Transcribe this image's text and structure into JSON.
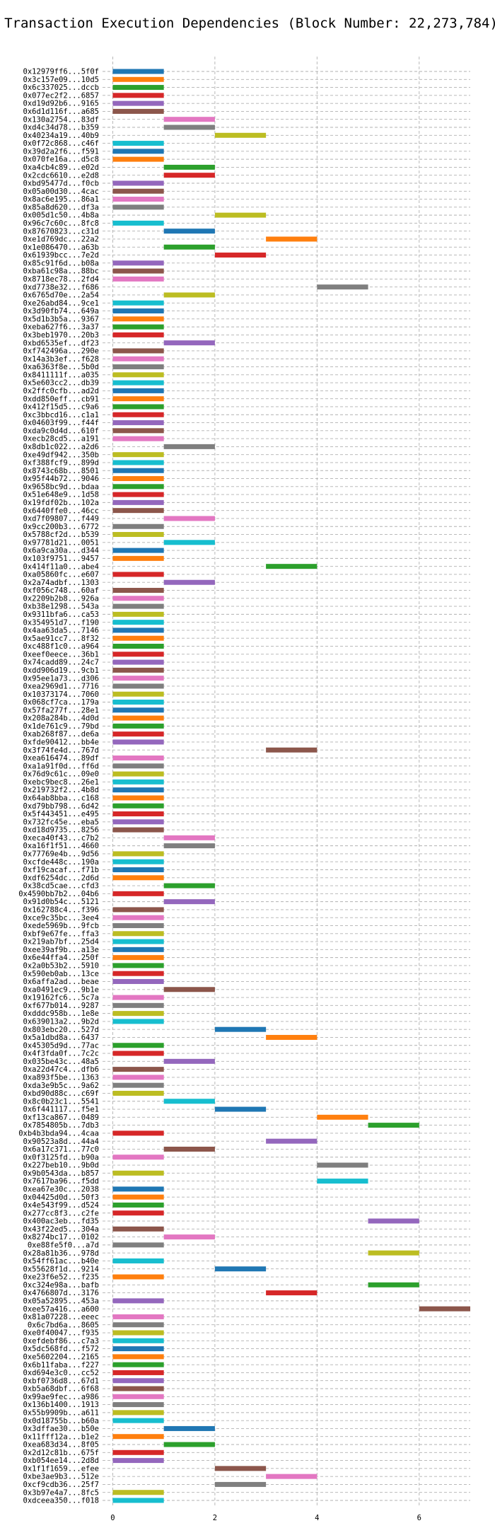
{
  "chart_data": {
    "type": "bar",
    "orientation": "horizontal",
    "title": "Transaction Execution Dependencies (Block Number: 22,273,784)",
    "xlabel": "",
    "ylabel": "",
    "xlim": [
      -0.2,
      7.0
    ],
    "xticks": [
      0,
      2,
      4,
      6
    ],
    "grid": "both",
    "palette": [
      "#1f77b4",
      "#ff7f0e",
      "#2ca02c",
      "#d62728",
      "#9467bd",
      "#8c564b",
      "#e377c2",
      "#7f7f7f",
      "#bcbd22",
      "#17becf"
    ],
    "bars": [
      {
        "tx": "0x12979ff6...5f0f",
        "start": 0,
        "end": 1
      },
      {
        "tx": "0x3c157e09...10d5",
        "start": 0,
        "end": 1
      },
      {
        "tx": "0x6c337025...dccb",
        "start": 0,
        "end": 1
      },
      {
        "tx": "0x077ec2f2...6857",
        "start": 0,
        "end": 1
      },
      {
        "tx": "0xd19d92b6...9165",
        "start": 0,
        "end": 1
      },
      {
        "tx": "0x6d1d116f...a685",
        "start": 0,
        "end": 1
      },
      {
        "tx": "0x130a2754...83df",
        "start": 1,
        "end": 2
      },
      {
        "tx": "0xd4c34d78...b359",
        "start": 1,
        "end": 2
      },
      {
        "tx": "0x40234a19...40b9",
        "start": 2,
        "end": 3
      },
      {
        "tx": "0x0f72c868...c46f",
        "start": 0,
        "end": 1
      },
      {
        "tx": "0x39d2a2f6...f591",
        "start": 0,
        "end": 1
      },
      {
        "tx": "0x070fe16a...d5c8",
        "start": 0,
        "end": 1
      },
      {
        "tx": "0xa4cb4c89...e02d",
        "start": 1,
        "end": 2
      },
      {
        "tx": "0x2cdc6610...e2d8",
        "start": 1,
        "end": 2
      },
      {
        "tx": "0xbd95477d...f0cb",
        "start": 0,
        "end": 1
      },
      {
        "tx": "0x05a00d30...4cac",
        "start": 0,
        "end": 1
      },
      {
        "tx": "0x8ac6e195...86a1",
        "start": 0,
        "end": 1
      },
      {
        "tx": "0x85a8d620...df3a",
        "start": 0,
        "end": 1
      },
      {
        "tx": "0x005d1c50...4b8a",
        "start": 2,
        "end": 3
      },
      {
        "tx": "0x96c7c60c...8fc8",
        "start": 0,
        "end": 1
      },
      {
        "tx": "0x87670823...c31d",
        "start": 1,
        "end": 2
      },
      {
        "tx": "0xe1d769dc...22a2",
        "start": 3,
        "end": 4
      },
      {
        "tx": "0x1e086470...a63b",
        "start": 1,
        "end": 2
      },
      {
        "tx": "0x61939bcc...7e2d",
        "start": 2,
        "end": 3
      },
      {
        "tx": "0x85c91f6d...b08a",
        "start": 0,
        "end": 1
      },
      {
        "tx": "0xba61c98a...88bc",
        "start": 0,
        "end": 1
      },
      {
        "tx": "0x8718ec78...2fd4",
        "start": 0,
        "end": 1
      },
      {
        "tx": "0xd7738e32...f686",
        "start": 4,
        "end": 5
      },
      {
        "tx": "0x6765d70e...2a54",
        "start": 1,
        "end": 2
      },
      {
        "tx": "0xe26abd84...9ce1",
        "start": 0,
        "end": 1
      },
      {
        "tx": "0x3d90fb74...649a",
        "start": 0,
        "end": 1
      },
      {
        "tx": "0x5d1b3b5a...9367",
        "start": 0,
        "end": 1
      },
      {
        "tx": "0xeba627f6...3a37",
        "start": 0,
        "end": 1
      },
      {
        "tx": "0x3beb1970...20b3",
        "start": 0,
        "end": 1
      },
      {
        "tx": "0xbd6535ef...df23",
        "start": 1,
        "end": 2
      },
      {
        "tx": "0xf742496a...290e",
        "start": 0,
        "end": 1
      },
      {
        "tx": "0x14a3b3ef...f628",
        "start": 0,
        "end": 1
      },
      {
        "tx": "0xa6363f8e...5b0d",
        "start": 0,
        "end": 1
      },
      {
        "tx": "0x8411111f...a035",
        "start": 0,
        "end": 1
      },
      {
        "tx": "0x5e603cc2...db39",
        "start": 0,
        "end": 1
      },
      {
        "tx": "0x2ffc0cfb...ad2d",
        "start": 0,
        "end": 1
      },
      {
        "tx": "0xdd850eff...cb91",
        "start": 0,
        "end": 1
      },
      {
        "tx": "0x412f15d5...c9a6",
        "start": 0,
        "end": 1
      },
      {
        "tx": "0xc3bbcd16...c1a1",
        "start": 0,
        "end": 1
      },
      {
        "tx": "0x04603f99...f44f",
        "start": 0,
        "end": 1
      },
      {
        "tx": "0xda9c0d4d...610f",
        "start": 0,
        "end": 1
      },
      {
        "tx": "0xecb28cd5...a191",
        "start": 0,
        "end": 1
      },
      {
        "tx": "0x8db1c022...a2d6",
        "start": 1,
        "end": 2
      },
      {
        "tx": "0xe49df942...350b",
        "start": 0,
        "end": 1
      },
      {
        "tx": "0xf388fcf9...899d",
        "start": 0,
        "end": 1
      },
      {
        "tx": "0x8743c68b...8501",
        "start": 0,
        "end": 1
      },
      {
        "tx": "0x95f44b72...9046",
        "start": 0,
        "end": 1
      },
      {
        "tx": "0x9658bc9d...bdaa",
        "start": 0,
        "end": 1
      },
      {
        "tx": "0x51e648e9...1d58",
        "start": 0,
        "end": 1
      },
      {
        "tx": "0x19fdf02b...102a",
        "start": 0,
        "end": 1
      },
      {
        "tx": "0x6440ffe0...46cc",
        "start": 0,
        "end": 1
      },
      {
        "tx": "0xd7f09807...f449",
        "start": 1,
        "end": 2
      },
      {
        "tx": "0x9cc200b3...6772",
        "start": 0,
        "end": 1
      },
      {
        "tx": "0x5788cf2d...b539",
        "start": 0,
        "end": 1
      },
      {
        "tx": "0x97781d21...0051",
        "start": 1,
        "end": 2
      },
      {
        "tx": "0x6a9ca30a...d344",
        "start": 0,
        "end": 1
      },
      {
        "tx": "0x103f9751...9457",
        "start": 0,
        "end": 1
      },
      {
        "tx": "0x414f11a0...abe4",
        "start": 3,
        "end": 4
      },
      {
        "tx": "0xa05860fc...e607",
        "start": 0,
        "end": 1
      },
      {
        "tx": "0x2a74adbf...1303",
        "start": 1,
        "end": 2
      },
      {
        "tx": "0xf056c748...60af",
        "start": 0,
        "end": 1
      },
      {
        "tx": "0x2209b2b8...926a",
        "start": 0,
        "end": 1
      },
      {
        "tx": "0xb38e1298...543a",
        "start": 0,
        "end": 1
      },
      {
        "tx": "0x9311bfa6...ca53",
        "start": 0,
        "end": 1
      },
      {
        "tx": "0x354951d7...f190",
        "start": 0,
        "end": 1
      },
      {
        "tx": "0x4aa63da5...7146",
        "start": 0,
        "end": 1
      },
      {
        "tx": "0x5ae91cc7...8f32",
        "start": 0,
        "end": 1
      },
      {
        "tx": "0xc488f1c0...a964",
        "start": 0,
        "end": 1
      },
      {
        "tx": "0xeef0eece...36b1",
        "start": 0,
        "end": 1
      },
      {
        "tx": "0x74cadd89...24c7",
        "start": 0,
        "end": 1
      },
      {
        "tx": "0xdd906d19...9cb1",
        "start": 0,
        "end": 1
      },
      {
        "tx": "0x95ee1a73...d306",
        "start": 0,
        "end": 1
      },
      {
        "tx": "0xea2969d1...7716",
        "start": 0,
        "end": 1
      },
      {
        "tx": "0x10373174...7060",
        "start": 0,
        "end": 1
      },
      {
        "tx": "0x068cf7ca...179a",
        "start": 0,
        "end": 1
      },
      {
        "tx": "0x57fa277f...28e1",
        "start": 0,
        "end": 1
      },
      {
        "tx": "0x208a284b...4d0d",
        "start": 0,
        "end": 1
      },
      {
        "tx": "0x1de761c9...79bd",
        "start": 0,
        "end": 1
      },
      {
        "tx": "0xab268f87...de6a",
        "start": 0,
        "end": 1
      },
      {
        "tx": "0xfde90412...bb4e",
        "start": 0,
        "end": 1
      },
      {
        "tx": "0x3f74fe4d...767d",
        "start": 3,
        "end": 4
      },
      {
        "tx": "0xea616474...89df",
        "start": 0,
        "end": 1
      },
      {
        "tx": "0xa1a91f0d...ff6d",
        "start": 0,
        "end": 1
      },
      {
        "tx": "0x76d9c61c...09e0",
        "start": 0,
        "end": 1
      },
      {
        "tx": "0xebc9bec8...26e1",
        "start": 0,
        "end": 1
      },
      {
        "tx": "0x219732f2...4b8d",
        "start": 0,
        "end": 1
      },
      {
        "tx": "0x64ab8bba...c168",
        "start": 0,
        "end": 1
      },
      {
        "tx": "0xd79bb798...6d42",
        "start": 0,
        "end": 1
      },
      {
        "tx": "0x5f443451...e495",
        "start": 0,
        "end": 1
      },
      {
        "tx": "0x732fc45e...eba5",
        "start": 0,
        "end": 1
      },
      {
        "tx": "0xd18d9735...8256",
        "start": 0,
        "end": 1
      },
      {
        "tx": "0xeca40f43...c7b2",
        "start": 1,
        "end": 2
      },
      {
        "tx": "0xa16f1f51...4660",
        "start": 1,
        "end": 2
      },
      {
        "tx": "0x77769e4b...9d56",
        "start": 0,
        "end": 1
      },
      {
        "tx": "0xcfde448c...190a",
        "start": 0,
        "end": 1
      },
      {
        "tx": "0xf19cacaf...f71b",
        "start": 0,
        "end": 1
      },
      {
        "tx": "0xdf6254dc...2d6d",
        "start": 0,
        "end": 1
      },
      {
        "tx": "0x38cd5cae...cfd3",
        "start": 1,
        "end": 2
      },
      {
        "tx": "0x4590bb7b2...04b6",
        "start": 0,
        "end": 1
      },
      {
        "tx": "0x91d0b54c...5121",
        "start": 1,
        "end": 2
      },
      {
        "tx": "0x162788c4...f396",
        "start": 0,
        "end": 1
      },
      {
        "tx": "0xce9c35bc...3ee4",
        "start": 0,
        "end": 1
      },
      {
        "tx": "0xede5969b...9fcb",
        "start": 0,
        "end": 1
      },
      {
        "tx": "0xbf9e67fe...ffa3",
        "start": 0,
        "end": 1
      },
      {
        "tx": "0x219ab7bf...25d4",
        "start": 0,
        "end": 1
      },
      {
        "tx": "0xee39af9b...a13e",
        "start": 0,
        "end": 1
      },
      {
        "tx": "0x6e44ffa4...250f",
        "start": 0,
        "end": 1
      },
      {
        "tx": "0x2a0b53b2...5910",
        "start": 0,
        "end": 1
      },
      {
        "tx": "0x590eb0ab...13ce",
        "start": 0,
        "end": 1
      },
      {
        "tx": "0x6affa2ad...beae",
        "start": 0,
        "end": 1
      },
      {
        "tx": "0xa0491ec9...9b1e",
        "start": 1,
        "end": 2
      },
      {
        "tx": "0x19162fc6...5c7a",
        "start": 0,
        "end": 1
      },
      {
        "tx": "0xf677b014...9287",
        "start": 0,
        "end": 1
      },
      {
        "tx": "0xdddc958b...1e8e",
        "start": 0,
        "end": 1
      },
      {
        "tx": "0x639013a2...9b2d",
        "start": 0,
        "end": 1
      },
      {
        "tx": "0x803ebc20...527d",
        "start": 2,
        "end": 3
      },
      {
        "tx": "0x5a1dbd8a...6437",
        "start": 3,
        "end": 4
      },
      {
        "tx": "0x45305d9d...77ac",
        "start": 0,
        "end": 1
      },
      {
        "tx": "0x4f3fda0f...7c2c",
        "start": 0,
        "end": 1
      },
      {
        "tx": "0x035be43c...48a5",
        "start": 1,
        "end": 2
      },
      {
        "tx": "0xa22d47c4...dfb6",
        "start": 0,
        "end": 1
      },
      {
        "tx": "0xa893f5be...1363",
        "start": 0,
        "end": 1
      },
      {
        "tx": "0xda3e9b5c...9a62",
        "start": 0,
        "end": 1
      },
      {
        "tx": "0xbd90d88c...c69f",
        "start": 0,
        "end": 1
      },
      {
        "tx": "0x8c0b23c1...5541",
        "start": 1,
        "end": 2
      },
      {
        "tx": "0x6f441117...f5e1",
        "start": 2,
        "end": 3
      },
      {
        "tx": "0xf13ca867...0489",
        "start": 4,
        "end": 5
      },
      {
        "tx": "0x7854805b...7db3",
        "start": 5,
        "end": 6
      },
      {
        "tx": "0xb4b3bda94...4caa",
        "start": 0,
        "end": 1
      },
      {
        "tx": "0x90523a8d...44a4",
        "start": 3,
        "end": 4
      },
      {
        "tx": "0x6a17c371...77c0",
        "start": 1,
        "end": 2
      },
      {
        "tx": "0x0f3125fd...b90a",
        "start": 0,
        "end": 1
      },
      {
        "tx": "0x227beb10...9b0d",
        "start": 4,
        "end": 5
      },
      {
        "tx": "0x9b0543da...b857",
        "start": 0,
        "end": 1
      },
      {
        "tx": "0x7617ba96...f5dd",
        "start": 4,
        "end": 5
      },
      {
        "tx": "0xea67e30c...2038",
        "start": 0,
        "end": 1
      },
      {
        "tx": "0x04425d0d...50f3",
        "start": 0,
        "end": 1
      },
      {
        "tx": "0x4e543f99...d524",
        "start": 0,
        "end": 1
      },
      {
        "tx": "0x277cc8f3...c2fe",
        "start": 0,
        "end": 1
      },
      {
        "tx": "0x400ac3eb...fd35",
        "start": 5,
        "end": 6
      },
      {
        "tx": "0x43f22ed5...304a",
        "start": 0,
        "end": 1
      },
      {
        "tx": "0x8274bc17...0102",
        "start": 1,
        "end": 2
      },
      {
        "tx": "0xe88fe5f0...a7d",
        "start": 0,
        "end": 1
      },
      {
        "tx": "0x28a81b36...978d",
        "start": 5,
        "end": 6
      },
      {
        "tx": "0x54ff61ac...b40e",
        "start": 0,
        "end": 1
      },
      {
        "tx": "0x55628f1d...9214",
        "start": 2,
        "end": 3
      },
      {
        "tx": "0xe23f6e52...f235",
        "start": 0,
        "end": 1
      },
      {
        "tx": "0xc324e98a...bafb",
        "start": 5,
        "end": 6
      },
      {
        "tx": "0x4766807d...3176",
        "start": 3,
        "end": 4
      },
      {
        "tx": "0x05a52895...453a",
        "start": 0,
        "end": 1
      },
      {
        "tx": "0xee57a416...a600",
        "start": 6,
        "end": 7
      },
      {
        "tx": "0x81a07228...eeec",
        "start": 0,
        "end": 1
      },
      {
        "tx": "0x6c7bd6a...8605",
        "start": 0,
        "end": 1
      },
      {
        "tx": "0xe0f40047...f935",
        "start": 0,
        "end": 1
      },
      {
        "tx": "0xefdebf86...c7a3",
        "start": 0,
        "end": 1
      },
      {
        "tx": "0x5dc568fd...f572",
        "start": 0,
        "end": 1
      },
      {
        "tx": "0xe5602204...2165",
        "start": 0,
        "end": 1
      },
      {
        "tx": "0x6b11faba...f227",
        "start": 0,
        "end": 1
      },
      {
        "tx": "0xd694e3c0...cc52",
        "start": 0,
        "end": 1
      },
      {
        "tx": "0xbf0736d8...67d1",
        "start": 0,
        "end": 1
      },
      {
        "tx": "0xb5a68dbf...6f68",
        "start": 0,
        "end": 1
      },
      {
        "tx": "0x99ae9fec...a986",
        "start": 0,
        "end": 1
      },
      {
        "tx": "0x136b1400...1913",
        "start": 0,
        "end": 1
      },
      {
        "tx": "0x55b9909b...a611",
        "start": 0,
        "end": 1
      },
      {
        "tx": "0x0d18755b...b60a",
        "start": 0,
        "end": 1
      },
      {
        "tx": "0x3dffae30...b50e",
        "start": 1,
        "end": 2
      },
      {
        "tx": "0x11fff12a...b1e2",
        "start": 0,
        "end": 1
      },
      {
        "tx": "0xea683d34...8f05",
        "start": 1,
        "end": 2
      },
      {
        "tx": "0x2d12c81b...675f",
        "start": 0,
        "end": 1
      },
      {
        "tx": "0xb054ee14...2d8d",
        "start": 0,
        "end": 1
      },
      {
        "tx": "0x1f1f1659...efee",
        "start": 2,
        "end": 3
      },
      {
        "tx": "0xbe3ae9b3...512e",
        "start": 3,
        "end": 4
      },
      {
        "tx": "0xcf9cdb36...25f7",
        "start": 2,
        "end": 3
      },
      {
        "tx": "0x3b97e4a7...8fc5",
        "start": 0,
        "end": 1
      },
      {
        "tx": "0xdceea350...f018",
        "start": 0,
        "end": 1
      }
    ]
  }
}
